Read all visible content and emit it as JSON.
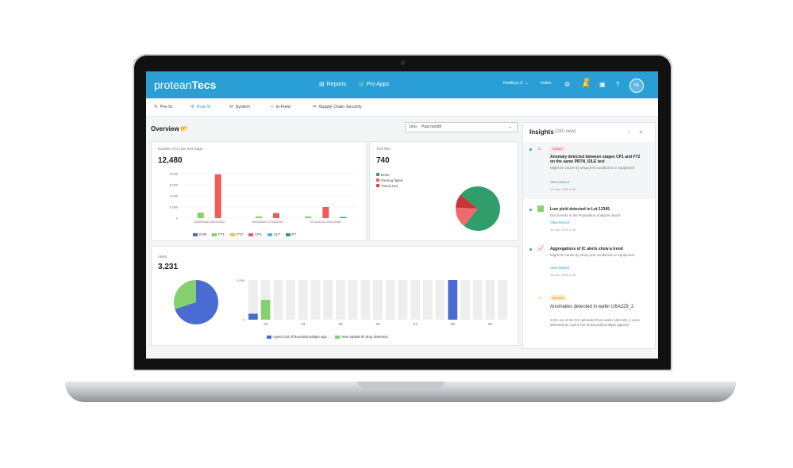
{
  "header": {
    "logo_main": "protean",
    "logo_accent": "Tecs",
    "reports": "Reports",
    "pro_apps": "Pro Apps",
    "product": "RedEye-2",
    "index": "Index",
    "notif_count": "1",
    "avatar": "PA"
  },
  "subnav": [
    "Pre-Si",
    "Post-Si",
    "System",
    "In-Field",
    "Supply Chain Security"
  ],
  "overview": {
    "title": "Overview",
    "period_short": "1mo",
    "period": "Past month"
  },
  "ics_card": {
    "label": "Number of ics per test stage",
    "total": "12,480",
    "y_ticks": [
      "8,000",
      "6,000",
      "4,000",
      "2,000",
      "0"
    ],
    "x_labels": [
      "12/09/2022-23/10/2022",
      "25/10/2022-07/12/2022",
      "07/12/2022-19/01/2023"
    ],
    "legend": [
      "EVB",
      "FT1",
      "FT2",
      "CP1",
      "SLT",
      "FT"
    ],
    "colors": [
      "#4a6bd1",
      "#86cf6f",
      "#f5c542",
      "#ef5b5b",
      "#58b8e0",
      "#2f9e6a"
    ]
  },
  "test_card": {
    "label": "Test files",
    "total": "740",
    "legend": [
      "Done",
      "Parsing failed",
      "Timed Out"
    ]
  },
  "alerts_card": {
    "label": "Alerts",
    "total": "3,231",
    "y_ticks": [
      "2,000",
      "0"
    ],
    "x_labels": [
      "23",
      "24",
      "25",
      "26",
      "27",
      "28",
      "29"
    ],
    "legend": [
      "Agent Out of Bounds(multiple age...",
      "New spatial IR drop detected."
    ]
  },
  "insights": {
    "title": "Insights",
    "count": "(260 new)",
    "items": [
      {
        "severity": "Severe",
        "title": "Anomaly detected between stages CP1 and FT2 on the same PRTN_IDLE test",
        "desc": "Might be cause by setup,test conditions or equipment",
        "link": "View Report",
        "date": "15 Jan, 2023 4:45"
      },
      {
        "title": "Low yield detected in Lot 12345",
        "desc": "Discovered in the Population Analysis report",
        "link": "View Report",
        "date": "15 Jan, 2023 4:45"
      },
      {
        "title": "Aggregations of IC alerts show a trend",
        "desc": "Might be cause by setup,test conditions or equipment",
        "link": "View Report",
        "date": "15 Jan, 2023 4:45"
      },
      {
        "severity": "Medium",
        "title": "Anomalies detected in wafer U6A229_2",
        "desc": "3.2% out of 62 ICs uploaded from wafer U6A229_2 were detected as Agent Out of Bounds(multiple agents)"
      }
    ]
  },
  "chart_data": [
    {
      "type": "bar",
      "categories": [
        "12/09/2022-23/10/2022",
        "25/10/2022-07/12/2022",
        "07/12/2022-19/01/2023"
      ],
      "series": [
        {
          "name": "EVB",
          "values": [
            0,
            0,
            0
          ]
        },
        {
          "name": "FT1",
          "values": [
            1000,
            300,
            300
          ]
        },
        {
          "name": "FT2",
          "values": [
            0,
            0,
            0
          ]
        },
        {
          "name": "CP1",
          "values": [
            7900,
            900,
            2000
          ]
        },
        {
          "name": "SLT",
          "values": [
            0,
            0,
            0
          ]
        },
        {
          "name": "FT",
          "values": [
            0,
            0,
            200
          ]
        }
      ],
      "title": "Number of ics per test stage",
      "ylim": [
        0,
        8000
      ]
    },
    {
      "type": "pie",
      "categories": [
        "Done",
        "Parsing failed",
        "Timed Out"
      ],
      "values": [
        75,
        15,
        10
      ],
      "title": "Test files"
    },
    {
      "type": "pie",
      "categories": [
        "Agent Out of Bounds(multiple age...",
        "New spatial IR drop detected."
      ],
      "values": [
        70,
        30
      ],
      "title": "Alerts"
    },
    {
      "type": "bar",
      "categories": [
        "23",
        "24",
        "25",
        "26",
        "27",
        "28",
        "29"
      ],
      "series": [
        {
          "name": "Agent Out of Bounds(multiple age...",
          "values": [
            300,
            0,
            0,
            0,
            0,
            2000,
            0
          ]
        },
        {
          "name": "New spatial IR drop detected.",
          "values": [
            1000,
            0,
            0,
            0,
            0,
            0,
            0
          ]
        }
      ],
      "ylim": [
        0,
        2000
      ]
    }
  ]
}
